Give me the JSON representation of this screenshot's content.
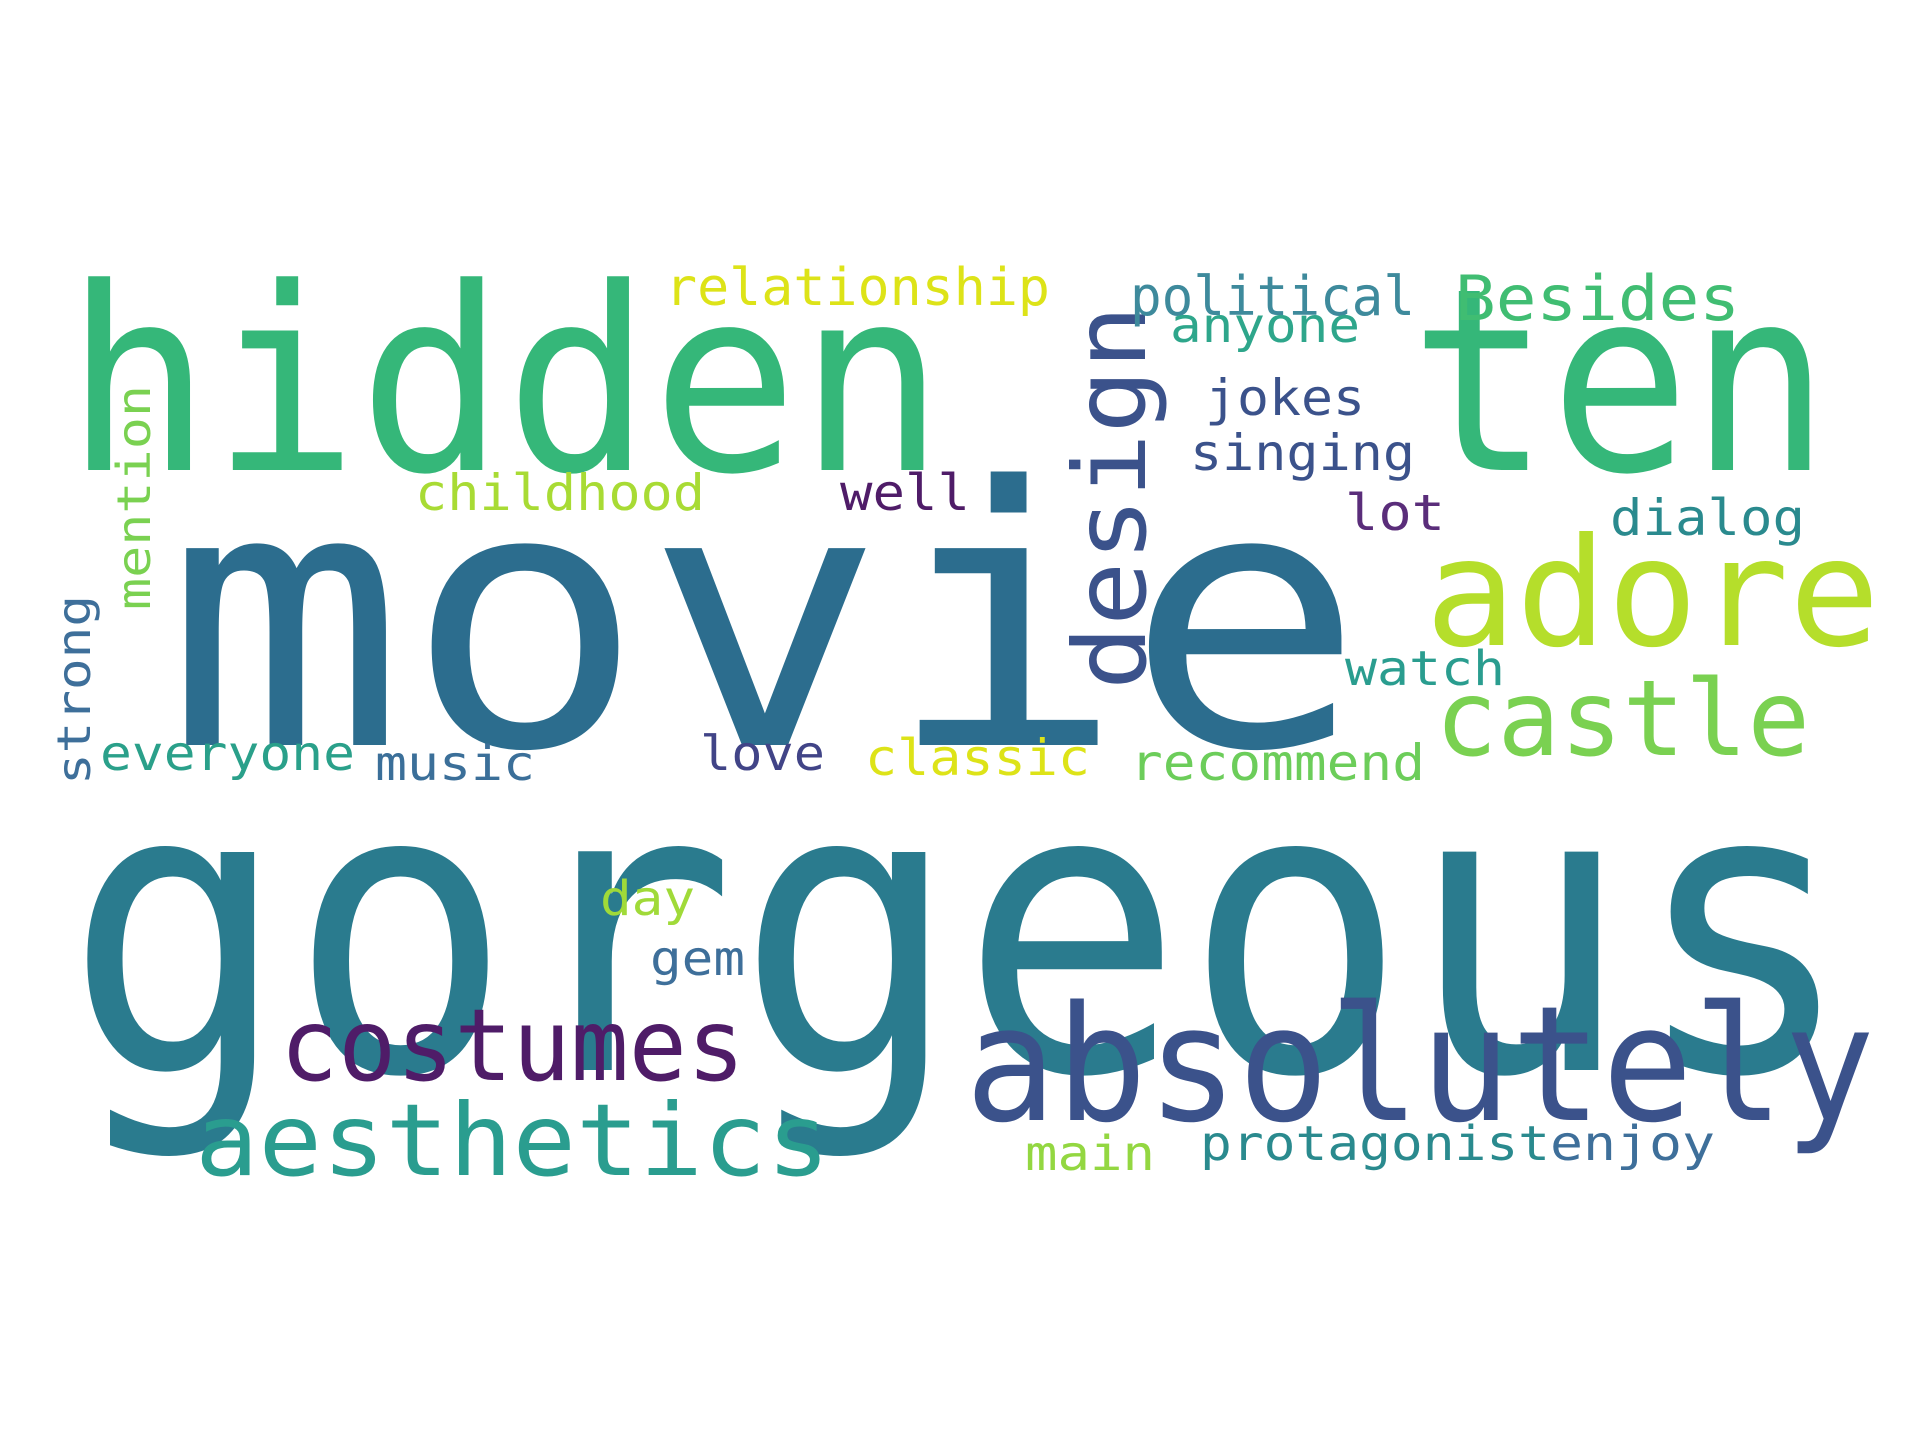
{
  "word_cloud": {
    "words": [
      {
        "text": "gorgeous",
        "color": "#2a7b8e"
      },
      {
        "text": "movie",
        "color": "#2c6d8e"
      },
      {
        "text": "hidden",
        "color": "#35b779"
      },
      {
        "text": "ten",
        "color": "#35b779"
      },
      {
        "text": "absolutely",
        "color": "#3b528b"
      },
      {
        "text": "adore",
        "color": "#b5de2b"
      },
      {
        "text": "castle",
        "color": "#7ad151"
      },
      {
        "text": "design",
        "color": "#3b528b"
      },
      {
        "text": "costumes",
        "color": "#4f1c68"
      },
      {
        "text": "aesthetics",
        "color": "#2a9d8f"
      },
      {
        "text": "relationship",
        "color": "#dde318"
      },
      {
        "text": "political",
        "color": "#3e8a9c"
      },
      {
        "text": "Besides",
        "color": "#40bd72"
      },
      {
        "text": "anyone",
        "color": "#2ea68b"
      },
      {
        "text": "jokes",
        "color": "#3b528b"
      },
      {
        "text": "singing",
        "color": "#3b528b"
      },
      {
        "text": "childhood",
        "color": "#a8db34"
      },
      {
        "text": "well",
        "color": "#4f1c68"
      },
      {
        "text": "lot",
        "color": "#5a2d7a"
      },
      {
        "text": "dialog",
        "color": "#2a8a8e"
      },
      {
        "text": "mention",
        "color": "#7ad151"
      },
      {
        "text": "strong",
        "color": "#3e6f9a"
      },
      {
        "text": "watch",
        "color": "#2a9d8f"
      },
      {
        "text": "everyone",
        "color": "#2aa08a"
      },
      {
        "text": "music",
        "color": "#3b6f99"
      },
      {
        "text": "love",
        "color": "#414487"
      },
      {
        "text": "classic",
        "color": "#dde318"
      },
      {
        "text": "recommend",
        "color": "#6ccd5a"
      },
      {
        "text": "day",
        "color": "#a0da39"
      },
      {
        "text": "gem",
        "color": "#3e6f9a"
      },
      {
        "text": "main",
        "color": "#93d741"
      },
      {
        "text": "protagonist",
        "color": "#2a8a8e"
      },
      {
        "text": "enjoy",
        "color": "#3e6f9a"
      }
    ]
  }
}
